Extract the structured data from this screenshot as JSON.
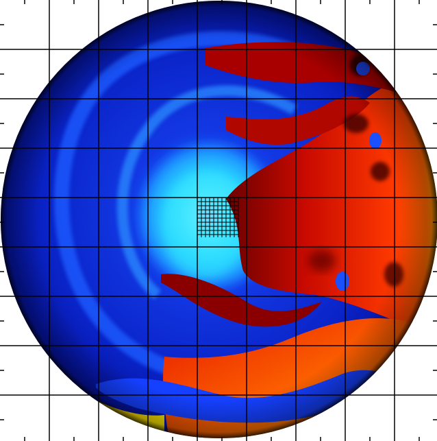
{
  "image": {
    "kind": "scientific false-color circular simulation map with grid overlay",
    "colormap": [
      "#00008a",
      "#0a2cff",
      "#2f8cff",
      "#2ee6ff",
      "#f4b6ff",
      "#3a0000",
      "#b00000",
      "#ff2a00",
      "#ff7a00",
      "#ffd200",
      "#ffff00"
    ],
    "background": "#ffffff",
    "grid_color": "#000000",
    "edge_color": "#000000"
  }
}
